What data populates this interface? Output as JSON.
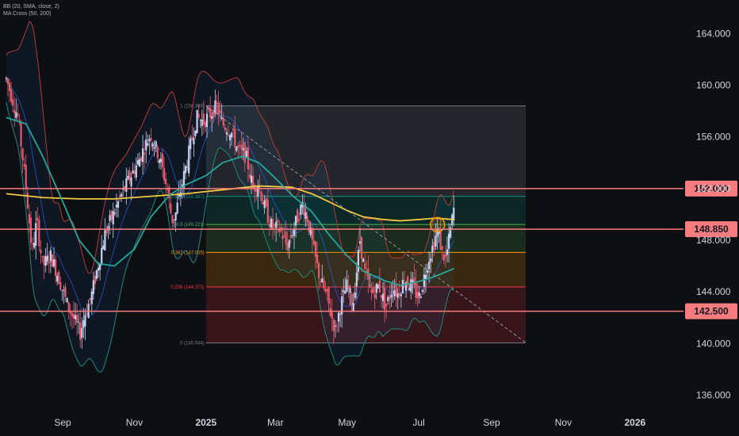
{
  "legend": {
    "line1": "BB (20, SMA, close, 2)",
    "line2": "MA Cross (50, 200)"
  },
  "chart_data": {
    "type": "line",
    "title": "",
    "xlabel": "",
    "ylabel": "",
    "ylim": [
      134.8,
      166.6
    ],
    "y_ticks": [
      "164.000",
      "160.000",
      "156.000",
      "152.000",
      "148.000",
      "144.000",
      "140.000",
      "136.000"
    ],
    "y_tick_values": [
      164,
      160,
      156,
      152,
      148,
      144,
      140,
      136
    ],
    "x_ticks": [
      {
        "label": "Sep",
        "date": "2024-09-01",
        "bold": false
      },
      {
        "label": "Nov",
        "date": "2024-11-01",
        "bold": false
      },
      {
        "label": "2025",
        "date": "2025-01-01",
        "bold": true
      },
      {
        "label": "Mar",
        "date": "2025-03-01",
        "bold": false
      },
      {
        "label": "May",
        "date": "2025-05-01",
        "bold": false
      },
      {
        "label": "Jul",
        "date": "2025-07-01",
        "bold": false
      },
      {
        "label": "Sep",
        "date": "2025-09-01",
        "bold": false
      },
      {
        "label": "Nov",
        "date": "2025-11-01",
        "bold": false
      },
      {
        "label": "2026",
        "date": "2026-01-01",
        "bold": true
      }
    ],
    "horizontal_levels": [
      {
        "value": 152.0,
        "label": "152.000",
        "color": "#f77c80"
      },
      {
        "value": 148.85,
        "label": "148.850",
        "color": "#f77c80"
      },
      {
        "value": 142.5,
        "label": "142.500",
        "color": "#f77c80"
      }
    ],
    "fibonacci": {
      "start_date": "2025-01-01",
      "end_date": "2025-09-30",
      "levels": [
        {
          "label": "1 (158.398)",
          "value": 158.398,
          "color": "#787b86",
          "fill": "rgba(120,123,134,0.22)"
        },
        {
          "label": "0.618 (151.387)",
          "value": 151.387,
          "color": "#089981",
          "fill": "rgba(8,153,129,0.18)"
        },
        {
          "label": "0.5 (149.221)",
          "value": 149.221,
          "color": "#4caf50",
          "fill": "rgba(76,175,80,0.18)"
        },
        {
          "label": "0.382 (147.055)",
          "value": 147.055,
          "color": "#ff9800",
          "fill": "rgba(255,152,0,0.18)"
        },
        {
          "label": "0.236 (144.375)",
          "value": 144.375,
          "color": "#f23645",
          "fill": "rgba(242,54,69,0.18)"
        },
        {
          "label": "0 (140.044)",
          "value": 140.044,
          "color": "#787b86",
          "fill": ""
        }
      ]
    },
    "trendline": {
      "start": {
        "date": "2025-01-01",
        "value": 158.4
      },
      "end": {
        "date": "2025-10-01",
        "value": 140.0
      },
      "color": "#9598a1"
    },
    "highlight_circle": {
      "date": "2025-07-17",
      "value": 149.2,
      "color": "#ff9800"
    },
    "series": [
      {
        "name": "Close",
        "color": "#787b86",
        "points": [
          [
            "2024-07-15",
            160.5
          ],
          [
            "2024-07-25",
            157.5
          ],
          [
            "2024-08-01",
            152.0
          ],
          [
            "2024-08-06",
            147.0
          ],
          [
            "2024-08-10",
            149.5
          ],
          [
            "2024-08-15",
            146.0
          ],
          [
            "2024-08-22",
            146.8
          ],
          [
            "2024-08-29",
            145.0
          ],
          [
            "2024-09-05",
            143.0
          ],
          [
            "2024-09-11",
            141.8
          ],
          [
            "2024-09-16",
            140.8
          ],
          [
            "2024-09-20",
            142.3
          ],
          [
            "2024-09-25",
            143.5
          ],
          [
            "2024-10-01",
            146.0
          ],
          [
            "2024-10-07",
            148.5
          ],
          [
            "2024-10-14",
            150.0
          ],
          [
            "2024-10-21",
            151.5
          ],
          [
            "2024-10-28",
            152.8
          ],
          [
            "2024-11-04",
            154.0
          ],
          [
            "2024-11-11",
            155.5
          ],
          [
            "2024-11-15",
            156.2
          ],
          [
            "2024-11-22",
            154.5
          ],
          [
            "2024-11-29",
            152.0
          ],
          [
            "2024-12-03",
            149.5
          ],
          [
            "2024-12-06",
            150.0
          ],
          [
            "2024-12-12",
            152.5
          ],
          [
            "2024-12-18",
            155.0
          ],
          [
            "2024-12-24",
            157.5
          ],
          [
            "2024-12-30",
            157.2
          ],
          [
            "2025-01-07",
            158.0
          ],
          [
            "2025-01-10",
            158.4
          ],
          [
            "2025-01-15",
            157.0
          ],
          [
            "2025-01-22",
            156.5
          ],
          [
            "2025-01-28",
            155.0
          ],
          [
            "2025-02-04",
            154.5
          ],
          [
            "2025-02-10",
            152.0
          ],
          [
            "2025-02-14",
            152.5
          ],
          [
            "2025-02-20",
            150.5
          ],
          [
            "2025-02-26",
            149.0
          ],
          [
            "2025-03-05",
            148.8
          ],
          [
            "2025-03-11",
            147.5
          ],
          [
            "2025-03-17",
            149.0
          ],
          [
            "2025-03-24",
            150.8
          ],
          [
            "2025-03-28",
            149.8
          ],
          [
            "2025-04-03",
            147.0
          ],
          [
            "2025-04-08",
            145.0
          ],
          [
            "2025-04-14",
            143.5
          ],
          [
            "2025-04-18",
            142.0
          ],
          [
            "2025-04-21",
            141.0
          ],
          [
            "2025-04-25",
            142.8
          ],
          [
            "2025-05-01",
            144.5
          ],
          [
            "2025-05-06",
            143.0
          ],
          [
            "2025-05-12",
            148.0
          ],
          [
            "2025-05-16",
            145.5
          ],
          [
            "2025-05-22",
            143.8
          ],
          [
            "2025-05-28",
            144.5
          ],
          [
            "2025-06-03",
            142.8
          ],
          [
            "2025-06-09",
            144.5
          ],
          [
            "2025-06-13",
            143.8
          ],
          [
            "2025-06-19",
            145.0
          ],
          [
            "2025-06-25",
            144.5
          ],
          [
            "2025-07-01",
            143.5
          ],
          [
            "2025-07-04",
            144.5
          ],
          [
            "2025-07-09",
            146.5
          ],
          [
            "2025-07-14",
            147.8
          ],
          [
            "2025-07-17",
            148.8
          ],
          [
            "2025-07-21",
            147.0
          ],
          [
            "2025-07-24",
            146.5
          ],
          [
            "2025-07-28",
            148.8
          ],
          [
            "2025-07-31",
            150.5
          ]
        ]
      },
      {
        "name": "MA 200",
        "color": "#f5c842",
        "points": [
          [
            "2024-07-15",
            151.6
          ],
          [
            "2024-08-15",
            151.3
          ],
          [
            "2024-09-15",
            151.2
          ],
          [
            "2024-10-15",
            151.2
          ],
          [
            "2024-11-15",
            151.4
          ],
          [
            "2024-12-15",
            151.6
          ],
          [
            "2025-01-15",
            151.9
          ],
          [
            "2025-02-15",
            152.2
          ],
          [
            "2025-03-15",
            152.1
          ],
          [
            "2025-04-01",
            151.6
          ],
          [
            "2025-04-15",
            151.0
          ],
          [
            "2025-05-01",
            150.3
          ],
          [
            "2025-05-15",
            149.8
          ],
          [
            "2025-06-01",
            149.6
          ],
          [
            "2025-06-15",
            149.5
          ],
          [
            "2025-07-01",
            149.6
          ],
          [
            "2025-07-15",
            149.7
          ],
          [
            "2025-07-31",
            149.6
          ]
        ]
      },
      {
        "name": "MA 50",
        "color": "#26a69a",
        "points": [
          [
            "2024-07-15",
            157.5
          ],
          [
            "2024-08-01",
            157.0
          ],
          [
            "2024-08-15",
            154.5
          ],
          [
            "2024-09-01",
            151.0
          ],
          [
            "2024-09-15",
            148.0
          ],
          [
            "2024-10-01",
            146.2
          ],
          [
            "2024-10-15",
            146.0
          ],
          [
            "2024-11-01",
            147.3
          ],
          [
            "2024-11-15",
            149.8
          ],
          [
            "2024-12-01",
            151.5
          ],
          [
            "2024-12-15",
            152.3
          ],
          [
            "2025-01-01",
            153.0
          ],
          [
            "2025-01-15",
            154.0
          ],
          [
            "2025-02-01",
            154.5
          ],
          [
            "2025-02-15",
            154.0
          ],
          [
            "2025-03-01",
            152.8
          ],
          [
            "2025-03-15",
            151.5
          ],
          [
            "2025-04-01",
            150.2
          ],
          [
            "2025-04-15",
            148.5
          ],
          [
            "2025-05-01",
            146.8
          ],
          [
            "2025-05-15",
            145.6
          ],
          [
            "2025-06-01",
            144.9
          ],
          [
            "2025-06-15",
            144.5
          ],
          [
            "2025-07-01",
            144.8
          ],
          [
            "2025-07-15",
            145.2
          ],
          [
            "2025-07-31",
            145.8
          ]
        ]
      }
    ]
  }
}
